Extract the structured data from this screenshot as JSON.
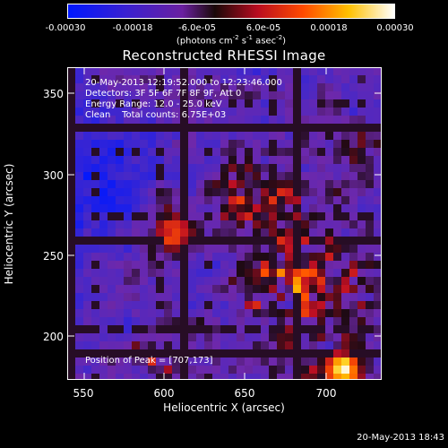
{
  "colorbar": {
    "ticks": [
      "-0.00030",
      "-0.00018",
      "-6.0e-05",
      "6.0e-05",
      "0.00018",
      "0.00030"
    ],
    "units_prefix": "(photons cm",
    "units_sup1": "-2",
    "units_mid1": " s",
    "units_sup2": "-1",
    "units_mid2": " asec",
    "units_sup3": "-2",
    "units_suffix": ")"
  },
  "title": "Reconstructed RHESSI Image",
  "info": {
    "line1": "20-May-2013 12:19:52.000 to 12:23:46.000",
    "line2": "Detectors: 3F 5F 6F 7F 8F 9F, Att 0",
    "line3": "Energy Range: 12.0 - 25.0 keV",
    "line4": "Clean    Total counts: 6.75E+03",
    "peak": "Position of Peak = [707,173]"
  },
  "axes": {
    "x_label": "Heliocentric X (arcsec)",
    "y_label": "Heliocentric Y (arcsec)",
    "x_ticks": [
      "550",
      "600",
      "650",
      "700"
    ],
    "y_ticks": [
      "350",
      "300",
      "250",
      "200"
    ]
  },
  "timestamp": "20-May-2013 18:43",
  "colors": {
    "background": "#000000",
    "colormap": [
      "#0018ff",
      "#3a20c8",
      "#5a2090",
      "#8a1c8c",
      "#d0102a",
      "#ff5a00",
      "#ffd000",
      "#ffffff"
    ]
  }
}
